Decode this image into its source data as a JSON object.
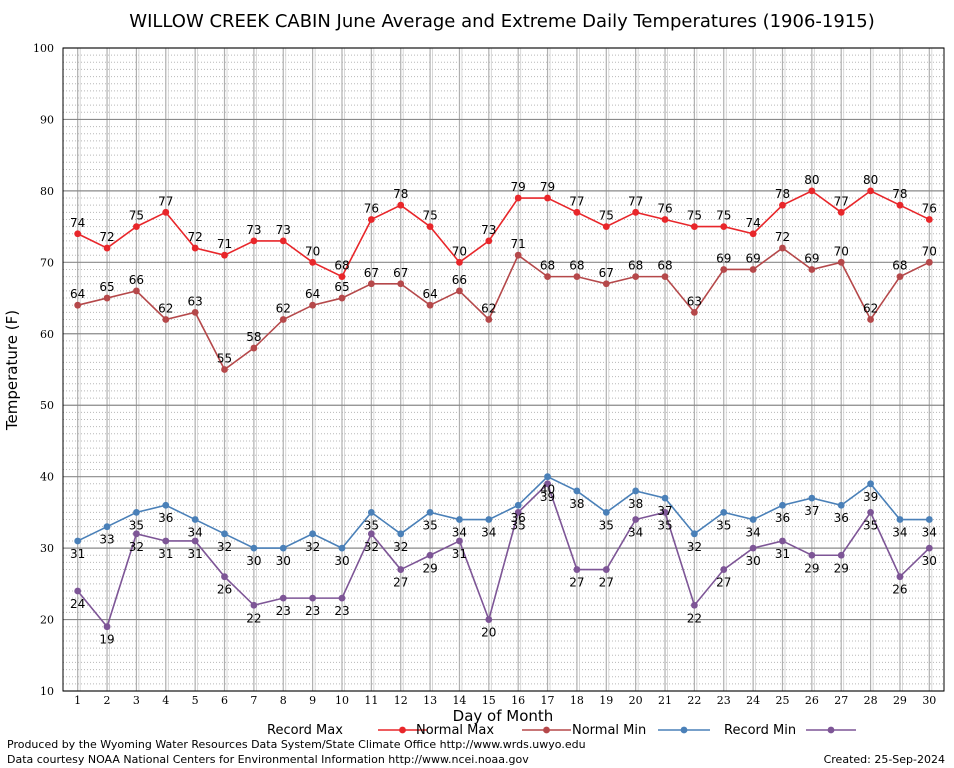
{
  "chart_data": {
    "type": "line",
    "title": "WILLOW CREEK CABIN June Average and Extreme Daily Temperatures (1906-1915)",
    "xlabel": "Day of Month",
    "ylabel": "Temperature (F)",
    "x": [
      1,
      2,
      3,
      4,
      5,
      6,
      7,
      8,
      9,
      10,
      11,
      12,
      13,
      14,
      15,
      16,
      17,
      18,
      19,
      20,
      21,
      22,
      23,
      24,
      25,
      26,
      27,
      28,
      29,
      30
    ],
    "ylim": [
      10,
      100
    ],
    "yticks": [
      10,
      20,
      30,
      40,
      50,
      60,
      70,
      80,
      90,
      100
    ],
    "grid": true,
    "legend_position": "bottom",
    "series": [
      {
        "name": "Record Max",
        "color": "#e8262a",
        "label_position": "above",
        "values": [
          74,
          72,
          75,
          77,
          72,
          71,
          73,
          73,
          70,
          68,
          76,
          78,
          75,
          70,
          73,
          79,
          79,
          77,
          75,
          77,
          76,
          75,
          75,
          74,
          78,
          80,
          77,
          80,
          78,
          76
        ]
      },
      {
        "name": "Normal Max",
        "color": "#b5484a",
        "label_position": "above",
        "values": [
          64,
          65,
          66,
          62,
          63,
          55,
          58,
          62,
          64,
          65,
          67,
          67,
          64,
          66,
          62,
          71,
          68,
          68,
          67,
          68,
          68,
          63,
          69,
          69,
          72,
          69,
          70,
          62,
          68,
          70
        ]
      },
      {
        "name": "Normal Min",
        "color": "#4a80b8",
        "label_position": "below",
        "values": [
          31,
          33,
          35,
          36,
          34,
          32,
          30,
          30,
          32,
          30,
          35,
          32,
          35,
          34,
          34,
          36,
          40,
          38,
          35,
          38,
          37,
          32,
          35,
          34,
          36,
          37,
          36,
          39,
          34,
          34
        ]
      },
      {
        "name": "Record Min",
        "color": "#7d5596",
        "label_position": "below",
        "values": [
          24,
          19,
          32,
          31,
          31,
          26,
          22,
          23,
          23,
          23,
          32,
          27,
          29,
          31,
          20,
          35,
          39,
          27,
          27,
          34,
          35,
          22,
          27,
          30,
          31,
          29,
          29,
          35,
          26,
          30
        ]
      }
    ]
  },
  "footer": {
    "line1": "Produced by the Wyoming Water Resources Data System/State Climate Office http://www.wrds.uwyo.edu",
    "line2": "Data courtesy NOAA National Centers for Environmental Information http://www.ncei.noaa.gov",
    "created": "Created:  25-Sep-2024"
  }
}
